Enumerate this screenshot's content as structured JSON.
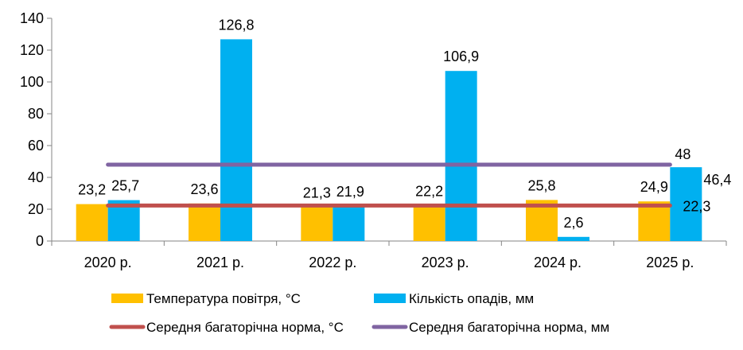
{
  "chart_data": {
    "type": "bar",
    "categories": [
      "2020 р.",
      "2021 р.",
      "2022 р.",
      "2023 р.",
      "2024 р.",
      "2025 р."
    ],
    "ylim": [
      0,
      140
    ],
    "yticks": [
      "0",
      "20",
      "40",
      "60",
      "80",
      "100",
      "120",
      "140"
    ],
    "grid": false,
    "legend_position": "bottom",
    "series": [
      {
        "name": "Температура повітря, °С",
        "kind": "bar",
        "color": "#FFC000",
        "values": [
          23.2,
          23.6,
          21.3,
          22.2,
          25.8,
          24.9
        ],
        "labels": [
          "23,2",
          "23,6",
          "21,3",
          "22,2",
          "25,8",
          "24,9"
        ]
      },
      {
        "name": "Кількість опадів, мм",
        "kind": "bar",
        "color": "#00B0F0",
        "values": [
          25.7,
          126.8,
          21.9,
          106.9,
          2.6,
          46.4
        ],
        "labels": [
          "25,7",
          "126,8",
          "21,9",
          "106,9",
          "2,6",
          "46,4"
        ]
      },
      {
        "name": "Середня багаторічна норма, °С",
        "kind": "line",
        "color": "#C0504D",
        "values": [
          22.3,
          22.3,
          22.3,
          22.3,
          22.3,
          22.3
        ],
        "end_label": "22,3"
      },
      {
        "name": "Середня багаторічна норма, мм",
        "kind": "line",
        "color": "#8064A2",
        "values": [
          48,
          48,
          48,
          48,
          48,
          48
        ],
        "end_label": "48"
      }
    ]
  }
}
